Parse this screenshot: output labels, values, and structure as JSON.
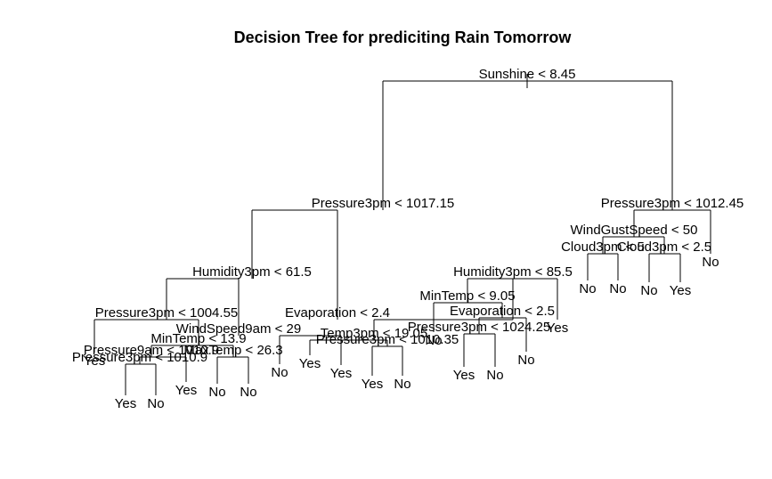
{
  "title": "Decision Tree for prediciting Rain Tomorrow",
  "colors": {
    "background": "#ffffff",
    "ink": "#000000"
  },
  "tree": {
    "label": "Sunshine < 8.45",
    "children": [
      {
        "label": "Pressure3pm < 1017.15",
        "children": [
          {
            "label": "Humidity3pm < 61.5",
            "children": [
              {
                "label": "Pressure3pm < 1004.55",
                "children": [
                  {
                    "label": "Yes"
                  },
                  {
                    "label": "MinTemp < 13.9",
                    "children": [
                      {
                        "label": "Pressure9am < 1010.9",
                        "children": [
                          {
                            "label": "Pressure3pm < 1010.9",
                            "children": [
                              {
                                "label": "Yes"
                              },
                              {
                                "label": "No"
                              }
                            ]
                          },
                          {
                            "label": "Yes"
                          }
                        ]
                      },
                      {
                        "label": "MaxTemp < 26.3",
                        "children": [
                          {
                            "label": "No"
                          },
                          {
                            "label": "No"
                          }
                        ]
                      }
                    ]
                  }
                ]
              },
              {
                "label": "WindSpeed9am < 29",
                "children": [
                  {
                    "label": "No"
                  },
                  {
                    "label": "Yes"
                  }
                ]
              }
            ]
          },
          {
            "label": "Evaporation < 2.4",
            "children": [
              {
                "label": "Temp3pm < 19.05",
                "children": [
                  {
                    "label": "Yes"
                  },
                  {
                    "label": "Pressure3pm < 1010.35",
                    "children": [
                      {
                        "label": "Yes"
                      },
                      {
                        "label": "No"
                      }
                    ]
                  }
                ]
              },
              {
                "label": "Humidity3pm < 85.5",
                "children": [
                  {
                    "label": "MinTemp < 9.05",
                    "children": [
                      {
                        "label": "No"
                      },
                      {
                        "label": "Evaporation < 2.5",
                        "children": [
                          {
                            "label": "Pressure3pm < 1024.25",
                            "children": [
                              {
                                "label": "Yes"
                              },
                              {
                                "label": "No"
                              }
                            ]
                          },
                          {
                            "label": "No"
                          }
                        ]
                      }
                    ]
                  },
                  {
                    "label": "Yes"
                  }
                ]
              }
            ]
          }
        ]
      },
      {
        "label": "Pressure3pm < 1012.45",
        "children": [
          {
            "label": "WindGustSpeed < 50",
            "children": [
              {
                "label": "Cloud3pm < 5",
                "children": [
                  {
                    "label": "No"
                  },
                  {
                    "label": "No"
                  }
                ]
              },
              {
                "label": "Cloud3pm < 2.5",
                "children": [
                  {
                    "label": "No"
                  },
                  {
                    "label": "Yes"
                  }
                ]
              }
            ]
          },
          {
            "label": "No"
          }
        ]
      }
    ]
  }
}
